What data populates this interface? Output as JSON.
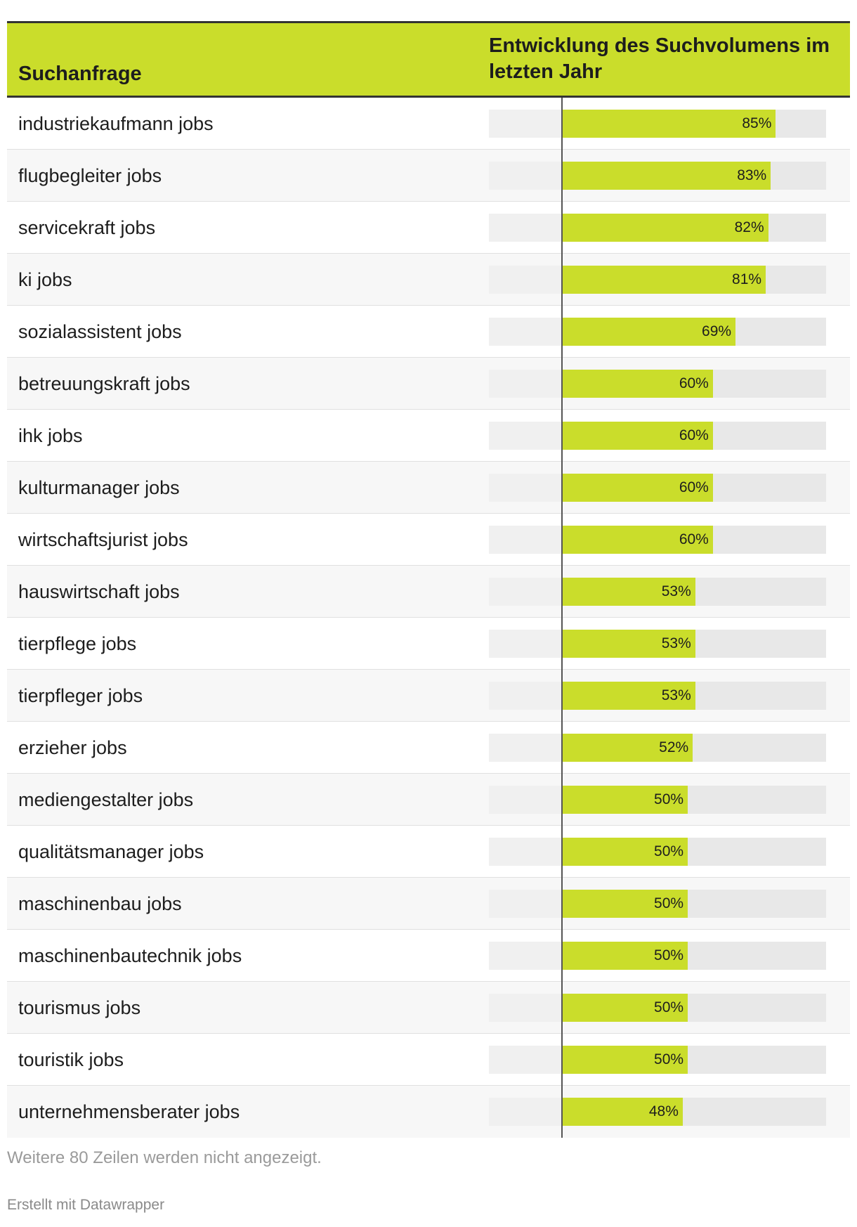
{
  "header": {
    "col_query": "Suchanfrage",
    "col_change": "Entwicklung des Suchvolumens im letzten Jahr"
  },
  "chart_data": {
    "type": "bar",
    "orientation": "horizontal",
    "xlim": [
      -29,
      105
    ],
    "categories": [
      "industriekaufmann jobs",
      "flugbegleiter jobs",
      "servicekraft jobs",
      "ki jobs",
      "sozialassistent jobs",
      "betreuungskraft jobs",
      "ihk jobs",
      "kulturmanager jobs",
      "wirtschaftsjurist jobs",
      "hauswirtschaft jobs",
      "tierpflege jobs",
      "tierpfleger jobs",
      "erzieher jobs",
      "mediengestalter jobs",
      "qualitätsmanager jobs",
      "maschinenbau jobs",
      "maschinenbautechnik jobs",
      "tourismus jobs",
      "touristik jobs",
      "unternehmensberater jobs"
    ],
    "values": [
      85,
      83,
      82,
      81,
      69,
      60,
      60,
      60,
      60,
      53,
      53,
      53,
      52,
      50,
      50,
      50,
      50,
      50,
      50,
      48
    ],
    "value_labels": [
      "85%",
      "83%",
      "82%",
      "81%",
      "69%",
      "60%",
      "60%",
      "60%",
      "60%",
      "53%",
      "53%",
      "53%",
      "52%",
      "50%",
      "50%",
      "50%",
      "50%",
      "50%",
      "50%",
      "48%"
    ],
    "bar_color": "#cadd2b"
  },
  "footer": {
    "note": "Weitere 80 Zeilen werden nicht angezeigt.",
    "credit": "Erstellt mit Datawrapper"
  }
}
